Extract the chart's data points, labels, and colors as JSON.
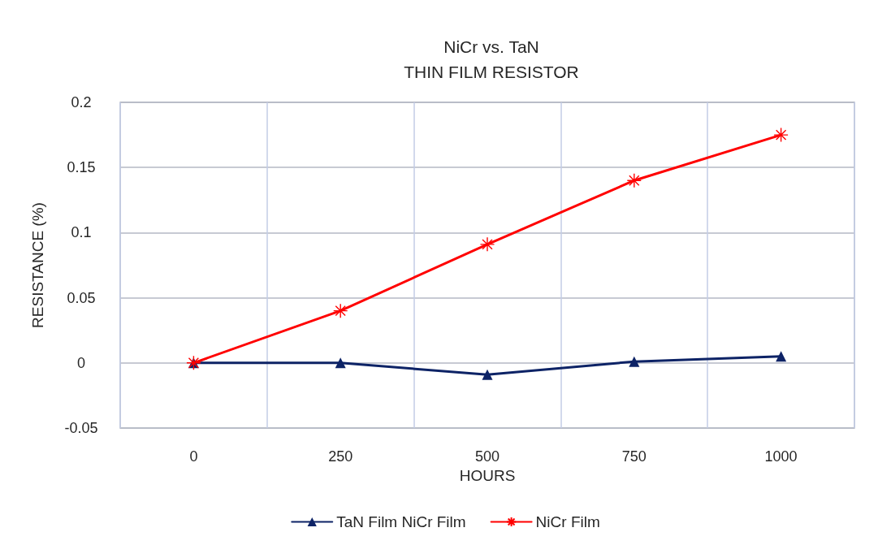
{
  "chart_data": {
    "type": "line",
    "title": "NiCr vs. TaN",
    "subtitle": "THIN FILM RESISTOR",
    "xlabel": "HOURS",
    "ylabel": "RESISTANCE (%)",
    "categories": [
      "0",
      "250",
      "500",
      "750",
      "1000"
    ],
    "series": [
      {
        "name": "TaN Film NiCr Film",
        "color": "#0d2366",
        "marker": "triangle",
        "values": [
          0,
          0,
          -0.009,
          0.001,
          0.005
        ]
      },
      {
        "name": "NiCr Film",
        "color": "#ff0000",
        "marker": "cross",
        "values": [
          0,
          0.04,
          0.091,
          0.14,
          0.175
        ]
      }
    ],
    "ylim": [
      -0.05,
      0.2
    ],
    "yticks": [
      -0.05,
      0,
      0.05,
      0.1,
      0.15,
      0.2
    ],
    "grid": true,
    "legend": "bottom",
    "line_style": "solid"
  }
}
